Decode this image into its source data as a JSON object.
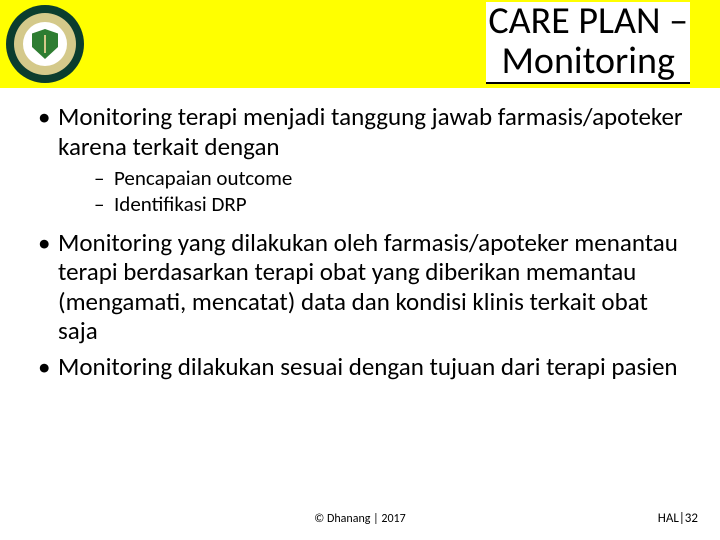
{
  "colors": {
    "header_bg": "#ffff00",
    "page_bg": "#ffffff",
    "text": "#000000",
    "logo_outer": "#0b3d2e",
    "logo_ring": "#d4c98a",
    "logo_inner": "#ffffff",
    "logo_shield": "#2e7d32"
  },
  "title": {
    "line1": "CARE PLAN –",
    "line2": "Monitoring",
    "fontsize": 38
  },
  "bullets": [
    {
      "text": "Monitoring terapi menjadi tanggung jawab farmasis/apoteker karena terkait dengan",
      "sub": [
        "Pencapaian outcome",
        "Identifikasi DRP"
      ]
    },
    {
      "text": "Monitoring yang dilakukan oleh farmasis/apoteker menantau terapi berdasarkan terapi obat yang diberikan memantau (mengamati, mencatat) data dan kondisi klinis terkait obat saja",
      "sub": []
    },
    {
      "text": "Monitoring dilakukan sesuai dengan tujuan dari terapi pasien",
      "sub": []
    }
  ],
  "footer": {
    "credit": "© Dhanang | 2017",
    "page": "HAL|32"
  },
  "typography": {
    "body_fontsize": 25,
    "sub_fontsize": 21,
    "footer_fontsize": 12
  }
}
